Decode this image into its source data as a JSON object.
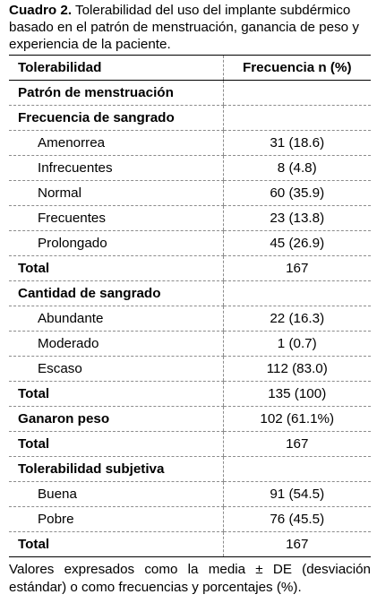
{
  "caption": {
    "label": "Cuadro 2.",
    "text": " Tolerabilidad del uso del implante subdérmico basado en el patrón de menstruación, ganancia de peso y experiencia de la paciente."
  },
  "table": {
    "headers": [
      "Tolerabilidad",
      "Frecuencia n (%)"
    ],
    "rows": [
      {
        "label": "Patrón de menstruación",
        "value": "",
        "style": "bold"
      },
      {
        "label": "Frecuencia de sangrado",
        "value": "",
        "style": "bold"
      },
      {
        "label": "Amenorrea",
        "value": "31 (18.6)",
        "style": "indent"
      },
      {
        "label": "Infrecuentes",
        "value": "8 (4.8)",
        "style": "indent"
      },
      {
        "label": "Normal",
        "value": "60 (35.9)",
        "style": "indent"
      },
      {
        "label": "Frecuentes",
        "value": "23 (13.8)",
        "style": "indent"
      },
      {
        "label": "Prolongado",
        "value": "45 (26.9)",
        "style": "indent"
      },
      {
        "label": "Total",
        "value": "167",
        "style": "bold"
      },
      {
        "label": "Cantidad de sangrado",
        "value": "",
        "style": "bold"
      },
      {
        "label": "Abundante",
        "value": "22 (16.3)",
        "style": "indent"
      },
      {
        "label": "Moderado",
        "value": "1 (0.7)",
        "style": "indent"
      },
      {
        "label": "Escaso",
        "value": "112 (83.0)",
        "style": "indent"
      },
      {
        "label": "Total",
        "value": "135 (100)",
        "style": "bold"
      },
      {
        "label": "Ganaron peso",
        "value": "102 (61.1%)",
        "style": "bold"
      },
      {
        "label": "Total",
        "value": "167",
        "style": "bold"
      },
      {
        "label": "Tolerabilidad subjetiva",
        "value": "",
        "style": "bold"
      },
      {
        "label": "Buena",
        "value": "91 (54.5)",
        "style": "indent"
      },
      {
        "label": "Pobre",
        "value": "76 (45.5)",
        "style": "indent"
      },
      {
        "label": "Total",
        "value": "167",
        "style": "bold"
      }
    ]
  },
  "footnote": "Valores expresados como la media ± DE (desviación estándar) o como frecuencias y porcentajes (%)."
}
